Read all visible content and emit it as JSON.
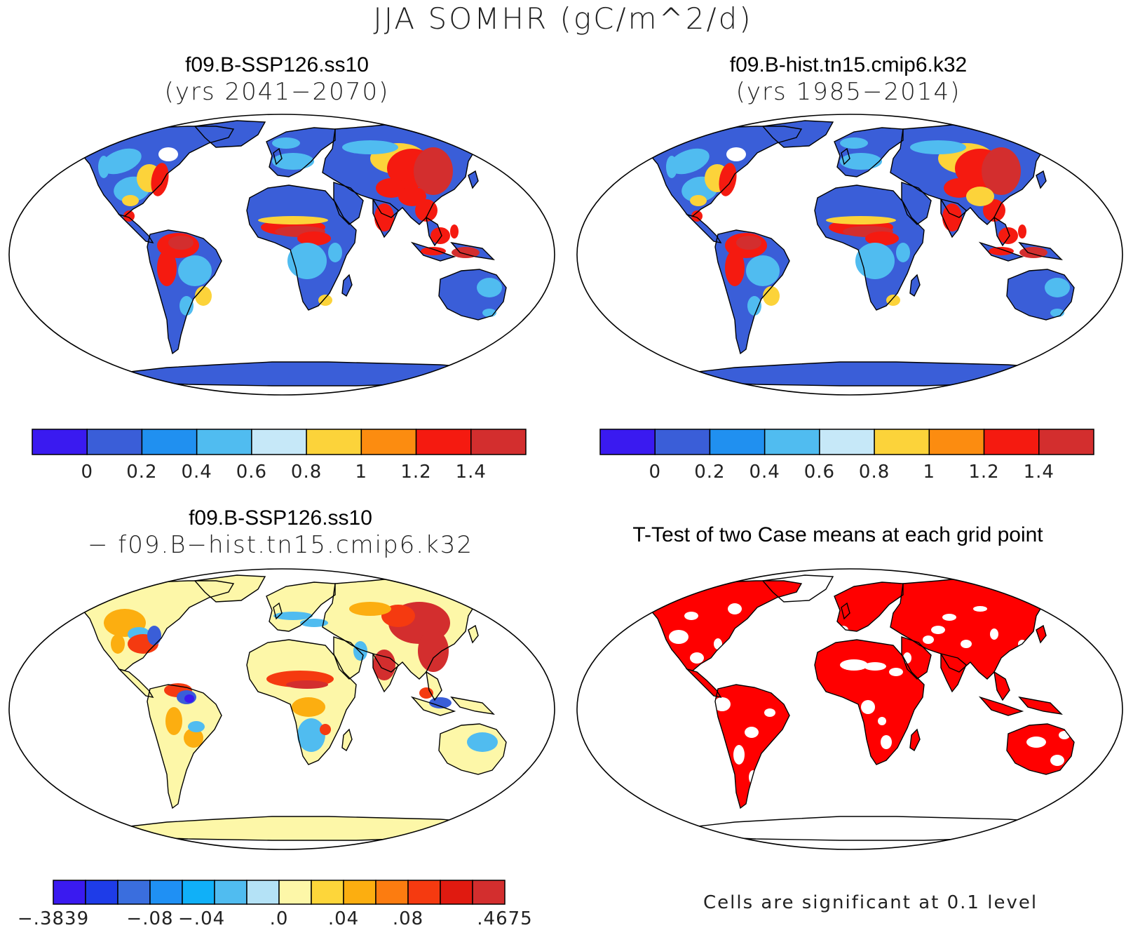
{
  "title": "JJA SOMHR (gC/m^2/d)",
  "panels": {
    "top_left": {
      "title": "f09.B-SSP126.ss10",
      "years": "(yrs 2041−2070)"
    },
    "top_right": {
      "title": "f09.B-hist.tn15.cmip6.k32",
      "years": "(yrs 1985−2014)"
    },
    "bottom_left": {
      "title": "f09.B-SSP126.ss10",
      "subtitle": "− f09.B−hist.tn15.cmip6.k32"
    },
    "bottom_right": {
      "title": "T-Test of two Case means at each grid point",
      "note": "Cells are significant at 0.1 level"
    }
  },
  "colorbar_abs": {
    "colors": [
      "#3a1af0",
      "#3a5ed8",
      "#2090f0",
      "#50bcf0",
      "#c6e8f8",
      "#fcd33a",
      "#fc8c10",
      "#f51a10",
      "#d32e2e"
    ],
    "labels": [
      "0",
      "0.2",
      "0.4",
      "0.6",
      "0.8",
      "1",
      "1.2",
      "1.4"
    ]
  },
  "colorbar_diff": {
    "colors": [
      "#3a1af0",
      "#1e3ce8",
      "#3a6ede",
      "#1f90f4",
      "#10b0f8",
      "#50bcf0",
      "#b4e2f6",
      "#fdf7a8",
      "#fdd63a",
      "#fcae10",
      "#fc7c10",
      "#f53a10",
      "#e01a10",
      "#d32e2e"
    ],
    "labels": [
      "−.3839",
      "−.08",
      "−.04",
      ".0",
      ".04",
      ".08",
      ".4675"
    ]
  },
  "map_colors": {
    "ocean": "#ffffff",
    "outline": "#000000",
    "significant": "#ff0000",
    "abs_low": "#3a5ed8",
    "abs_mid": "#50bcf0",
    "abs_warm": "#fcd33a",
    "abs_high": "#f51a10",
    "abs_max": "#d32e2e",
    "diff_neutral": "#fdf7a8",
    "diff_neg": "#50bcf0",
    "diff_neg2": "#3a5ed8",
    "diff_pos": "#fcae10",
    "diff_pos2": "#f53a10",
    "diff_max": "#d32e2e"
  }
}
